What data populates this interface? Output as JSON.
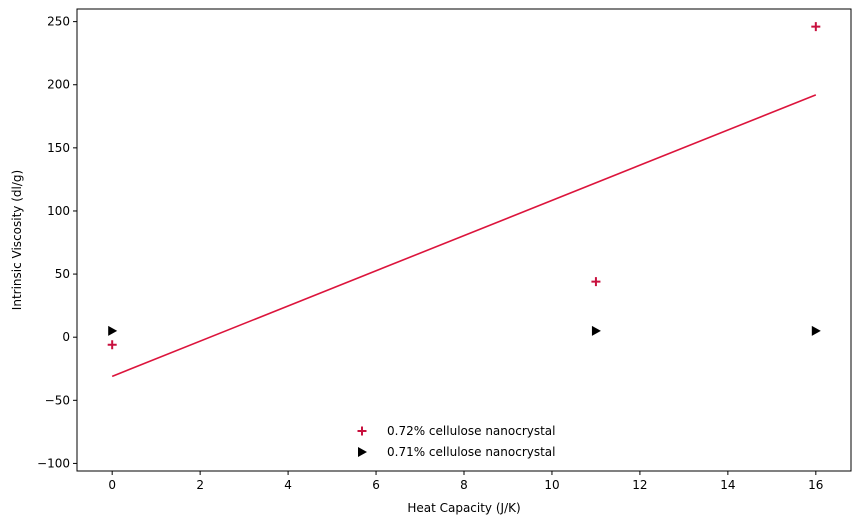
{
  "chart_data": {
    "type": "scatter",
    "xlabel": "Heat Capacity (J/K)",
    "ylabel": "Intrinsic Viscosity (dl/g)",
    "xlim": [
      -0.8,
      16.8
    ],
    "ylim": [
      -106,
      260
    ],
    "xticks": [
      0,
      2,
      4,
      6,
      8,
      10,
      12,
      14,
      16
    ],
    "yticks": [
      -100,
      -50,
      0,
      50,
      100,
      150,
      200,
      250
    ],
    "grid": false,
    "legend_position": "bottom-center",
    "series": [
      {
        "name": "0.72% cellulose nanocrystal",
        "marker": "plus",
        "color": "#c8103e",
        "x": [
          0,
          11,
          16
        ],
        "y": [
          -6,
          44,
          246
        ]
      },
      {
        "name": "0.71% cellulose nanocrystal",
        "marker": "triangle-right",
        "color": "#000000",
        "x": [
          0,
          11,
          16
        ],
        "y": [
          5,
          5,
          5
        ]
      }
    ],
    "trend_line": {
      "color": "#dc143c",
      "x": [
        0,
        16
      ],
      "y": [
        -31,
        192
      ]
    }
  }
}
